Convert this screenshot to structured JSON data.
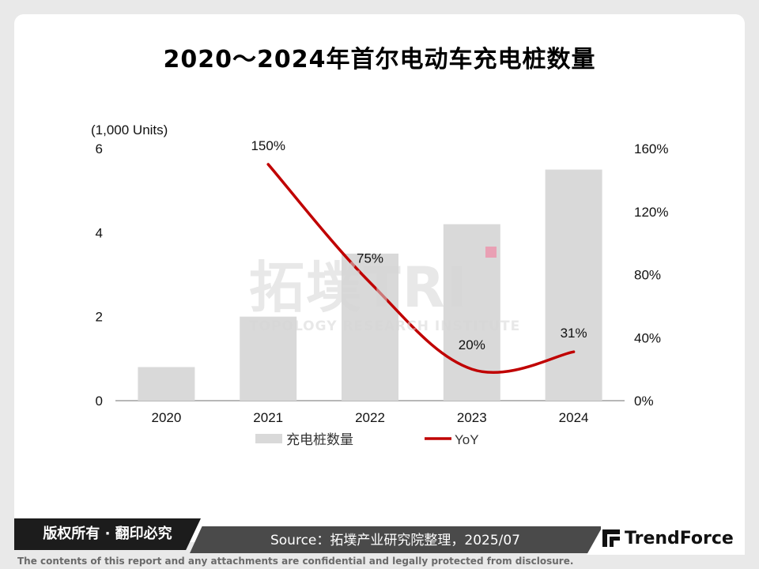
{
  "title": "2020～2024年首尔电动车充电桩数量",
  "chart_data": {
    "type": "bar",
    "categories": [
      "2020",
      "2021",
      "2022",
      "2023",
      "2024"
    ],
    "series": [
      {
        "name": "充电桩数量",
        "type": "bar",
        "axis": "left",
        "values": [
          0.8,
          2.0,
          3.5,
          4.2,
          5.5
        ],
        "color": "#d9d9d9"
      },
      {
        "name": "YoY",
        "type": "line",
        "axis": "right",
        "values": [
          null,
          150,
          75,
          20,
          31
        ],
        "labels": [
          "",
          "150%",
          "75%",
          "20%",
          "31%"
        ],
        "color": "#c00000"
      }
    ],
    "y_left": {
      "unit_label": "(1,000 Units)",
      "ticks": [
        "0",
        "2",
        "4",
        "6"
      ],
      "range": [
        0,
        6
      ]
    },
    "y_right": {
      "ticks": [
        "0%",
        "40%",
        "80%",
        "120%",
        "160%"
      ],
      "range": [
        0,
        160
      ]
    },
    "legend": {
      "position": "bottom"
    }
  },
  "watermark": {
    "main": "拓墣TRI",
    "sub": "TOPOLOGY RESEARCH INSTITUTE"
  },
  "footer": {
    "copyright": "版权所有 · 翻印必究",
    "source": "Source：拓墣产业研究院整理，2025/07",
    "brand": "TrendForce",
    "disclaimer": "The contents of this report and any attachments are confidential and legally protected from disclosure."
  }
}
